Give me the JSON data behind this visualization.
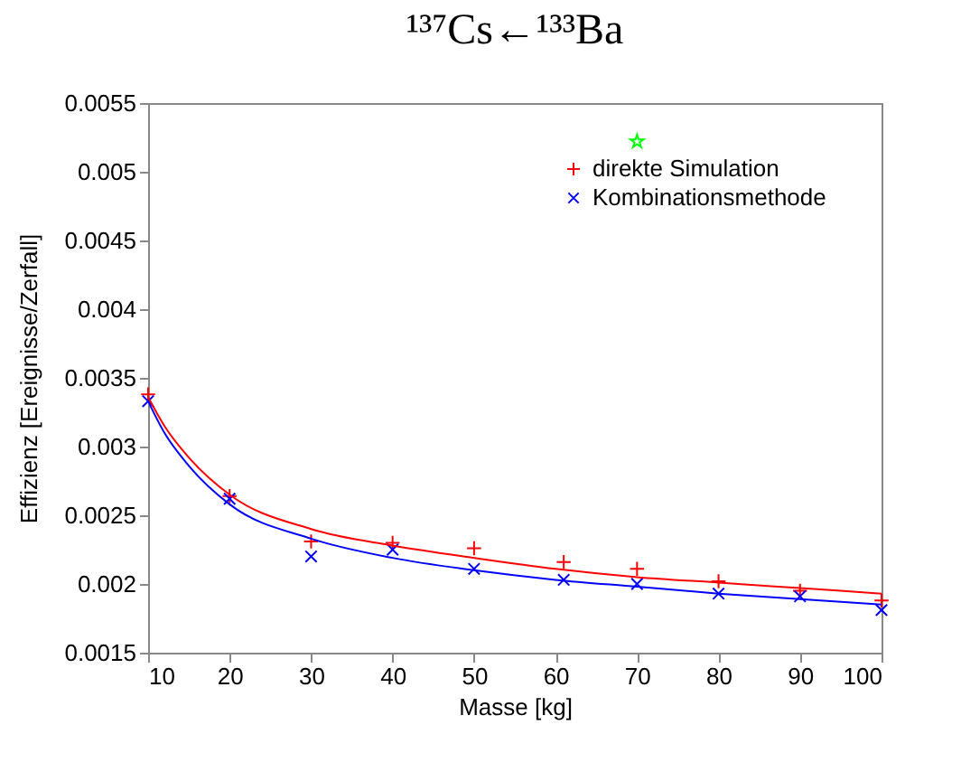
{
  "chart_data": {
    "type": "scatter",
    "title": "¹³⁷Cs←¹³³Ba",
    "xlabel": "Masse [kg]",
    "ylabel": "Effizienz [Ereignisse/Zerfall]",
    "xlim": [
      10,
      100
    ],
    "xticks": [
      10,
      20,
      30,
      40,
      50,
      60,
      70,
      80,
      90,
      100
    ],
    "ylim": [
      0.0015,
      0.0055
    ],
    "yticks": [
      0.0015,
      0.002,
      0.0025,
      0.003,
      0.0035,
      0.004,
      0.0045,
      0.005,
      0.0055
    ],
    "grid": false,
    "legend": "top right",
    "series": [
      {
        "name": "direkte Simulation",
        "color": "#ff0000",
        "marker": "cross",
        "x": [
          10,
          20,
          30,
          40,
          50,
          61,
          70,
          80,
          90,
          100
        ],
        "values": [
          0.00338,
          0.00264,
          0.00231,
          0.0023,
          0.00226,
          0.00216,
          0.00211,
          0.00202,
          0.00195,
          0.00188
        ]
      },
      {
        "name": "Kombinationsmethode",
        "color": "#0000ff",
        "marker": "x",
        "x": [
          10,
          20,
          30,
          40,
          50,
          61,
          70,
          80,
          90,
          100
        ],
        "values": [
          0.00333,
          0.00262,
          0.0022,
          0.00225,
          0.00211,
          0.00203,
          0.002,
          0.00193,
          0.00191,
          0.00181
        ]
      },
      {
        "color": "#00ff00",
        "marker": "star",
        "x": [
          70
        ],
        "values": [
          0.00522
        ]
      },
      {
        "type": "line",
        "color": "#ff0000",
        "x": [
          10,
          12,
          15,
          20,
          30,
          40,
          50,
          60,
          70,
          80,
          90,
          100
        ],
        "values": [
          0.00336,
          0.00315,
          0.00292,
          0.00265,
          0.0024,
          0.00228,
          0.00219,
          0.00211,
          0.00205,
          0.00201,
          0.00197,
          0.00193
        ]
      },
      {
        "type": "line",
        "color": "#0000ff",
        "x": [
          10,
          12,
          15,
          20,
          30,
          40,
          50,
          60,
          70,
          80,
          90,
          100
        ],
        "values": [
          0.00333,
          0.0031,
          0.00286,
          0.00258,
          0.00233,
          0.00219,
          0.0021,
          0.00203,
          0.00198,
          0.00193,
          0.00189,
          0.00185
        ]
      }
    ]
  }
}
